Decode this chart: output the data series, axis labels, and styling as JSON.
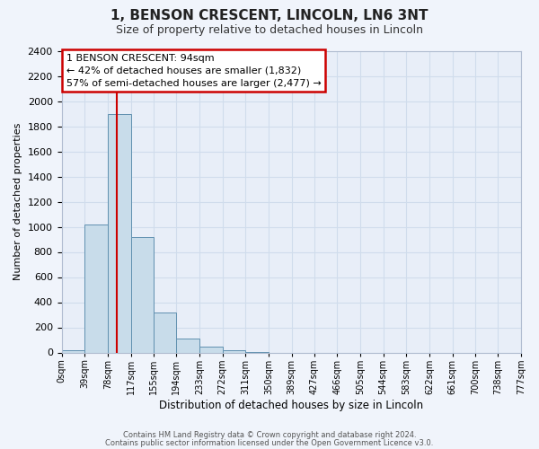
{
  "title": "1, BENSON CRESCENT, LINCOLN, LN6 3NT",
  "subtitle": "Size of property relative to detached houses in Lincoln",
  "xlabel": "Distribution of detached houses by size in Lincoln",
  "ylabel": "Number of detached properties",
  "bar_color": "#c8dcea",
  "bar_edge_color": "#6090b0",
  "grid_color": "#d0dcec",
  "background_color": "#f0f4fb",
  "plot_bg_color": "#e8eef8",
  "bin_edges": [
    0,
    39,
    78,
    117,
    155,
    194,
    233,
    272,
    311,
    350,
    389,
    427,
    466,
    505,
    544,
    583,
    622,
    661,
    700,
    738,
    777
  ],
  "bin_labels": [
    "0sqm",
    "39sqm",
    "78sqm",
    "117sqm",
    "155sqm",
    "194sqm",
    "233sqm",
    "272sqm",
    "311sqm",
    "350sqm",
    "389sqm",
    "427sqm",
    "466sqm",
    "505sqm",
    "544sqm",
    "583sqm",
    "622sqm",
    "661sqm",
    "700sqm",
    "738sqm",
    "777sqm"
  ],
  "bar_heights": [
    20,
    1020,
    1900,
    920,
    320,
    110,
    50,
    20,
    5,
    0,
    0,
    0,
    0,
    0,
    0,
    0,
    0,
    0,
    0,
    0
  ],
  "property_size": 94,
  "red_line_x": 94,
  "annotation_title": "1 BENSON CRESCENT: 94sqm",
  "annotation_line1": "← 42% of detached houses are smaller (1,832)",
  "annotation_line2": "57% of semi-detached houses are larger (2,477) →",
  "annotation_box_color": "#ffffff",
  "annotation_box_edge": "#cc0000",
  "red_line_color": "#cc0000",
  "ylim": [
    0,
    2400
  ],
  "yticks": [
    0,
    200,
    400,
    600,
    800,
    1000,
    1200,
    1400,
    1600,
    1800,
    2000,
    2200,
    2400
  ],
  "footer1": "Contains HM Land Registry data © Crown copyright and database right 2024.",
  "footer2": "Contains public sector information licensed under the Open Government Licence v3.0."
}
